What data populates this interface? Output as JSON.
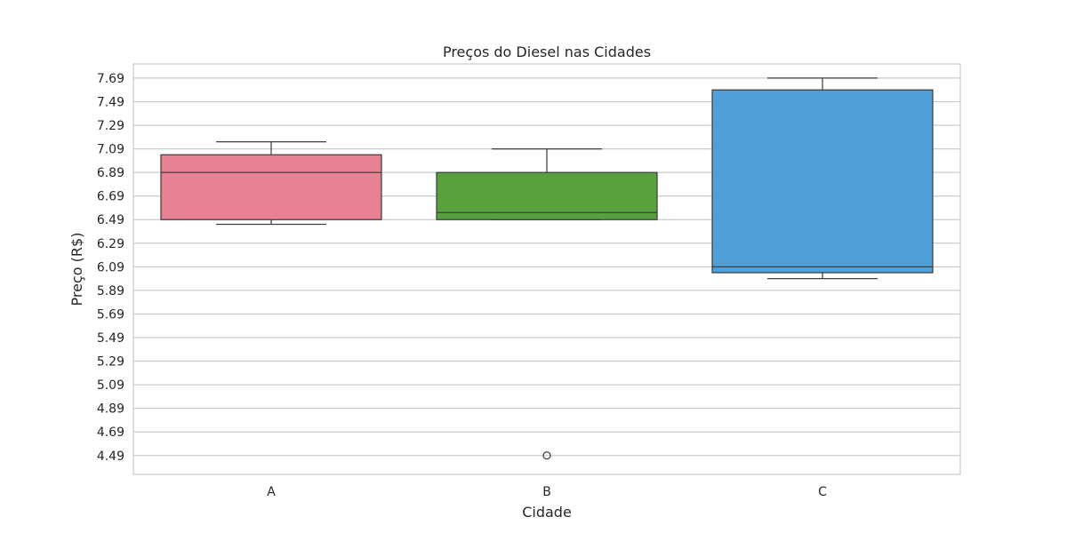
{
  "chart_data": {
    "type": "box",
    "title": "Preços do Diesel nas Cidades",
    "xlabel": "Cidade",
    "ylabel": "Preço (R$)",
    "ylim": [
      4.33,
      7.81
    ],
    "yticks": [
      "4.49",
      "4.69",
      "4.89",
      "5.09",
      "5.29",
      "5.49",
      "5.69",
      "5.89",
      "6.09",
      "6.29",
      "6.49",
      "6.69",
      "6.89",
      "7.09",
      "7.29",
      "7.49",
      "7.69"
    ],
    "grid": "horizontal",
    "categories": [
      "A",
      "B",
      "C"
    ],
    "boxes": [
      {
        "category": "A",
        "whisker_low": 6.45,
        "q1": 6.49,
        "median": 6.89,
        "q3": 7.04,
        "whisker_high": 7.15,
        "outliers": [],
        "color": "#e88193"
      },
      {
        "category": "B",
        "whisker_low": 6.49,
        "q1": 6.49,
        "median": 6.55,
        "q3": 6.89,
        "whisker_high": 7.09,
        "outliers": [
          4.49
        ],
        "color": "#58a13e"
      },
      {
        "category": "C",
        "whisker_low": 5.99,
        "q1": 6.04,
        "median": 6.09,
        "q3": 7.59,
        "whisker_high": 7.69,
        "outliers": [],
        "color": "#519fd8"
      }
    ]
  }
}
